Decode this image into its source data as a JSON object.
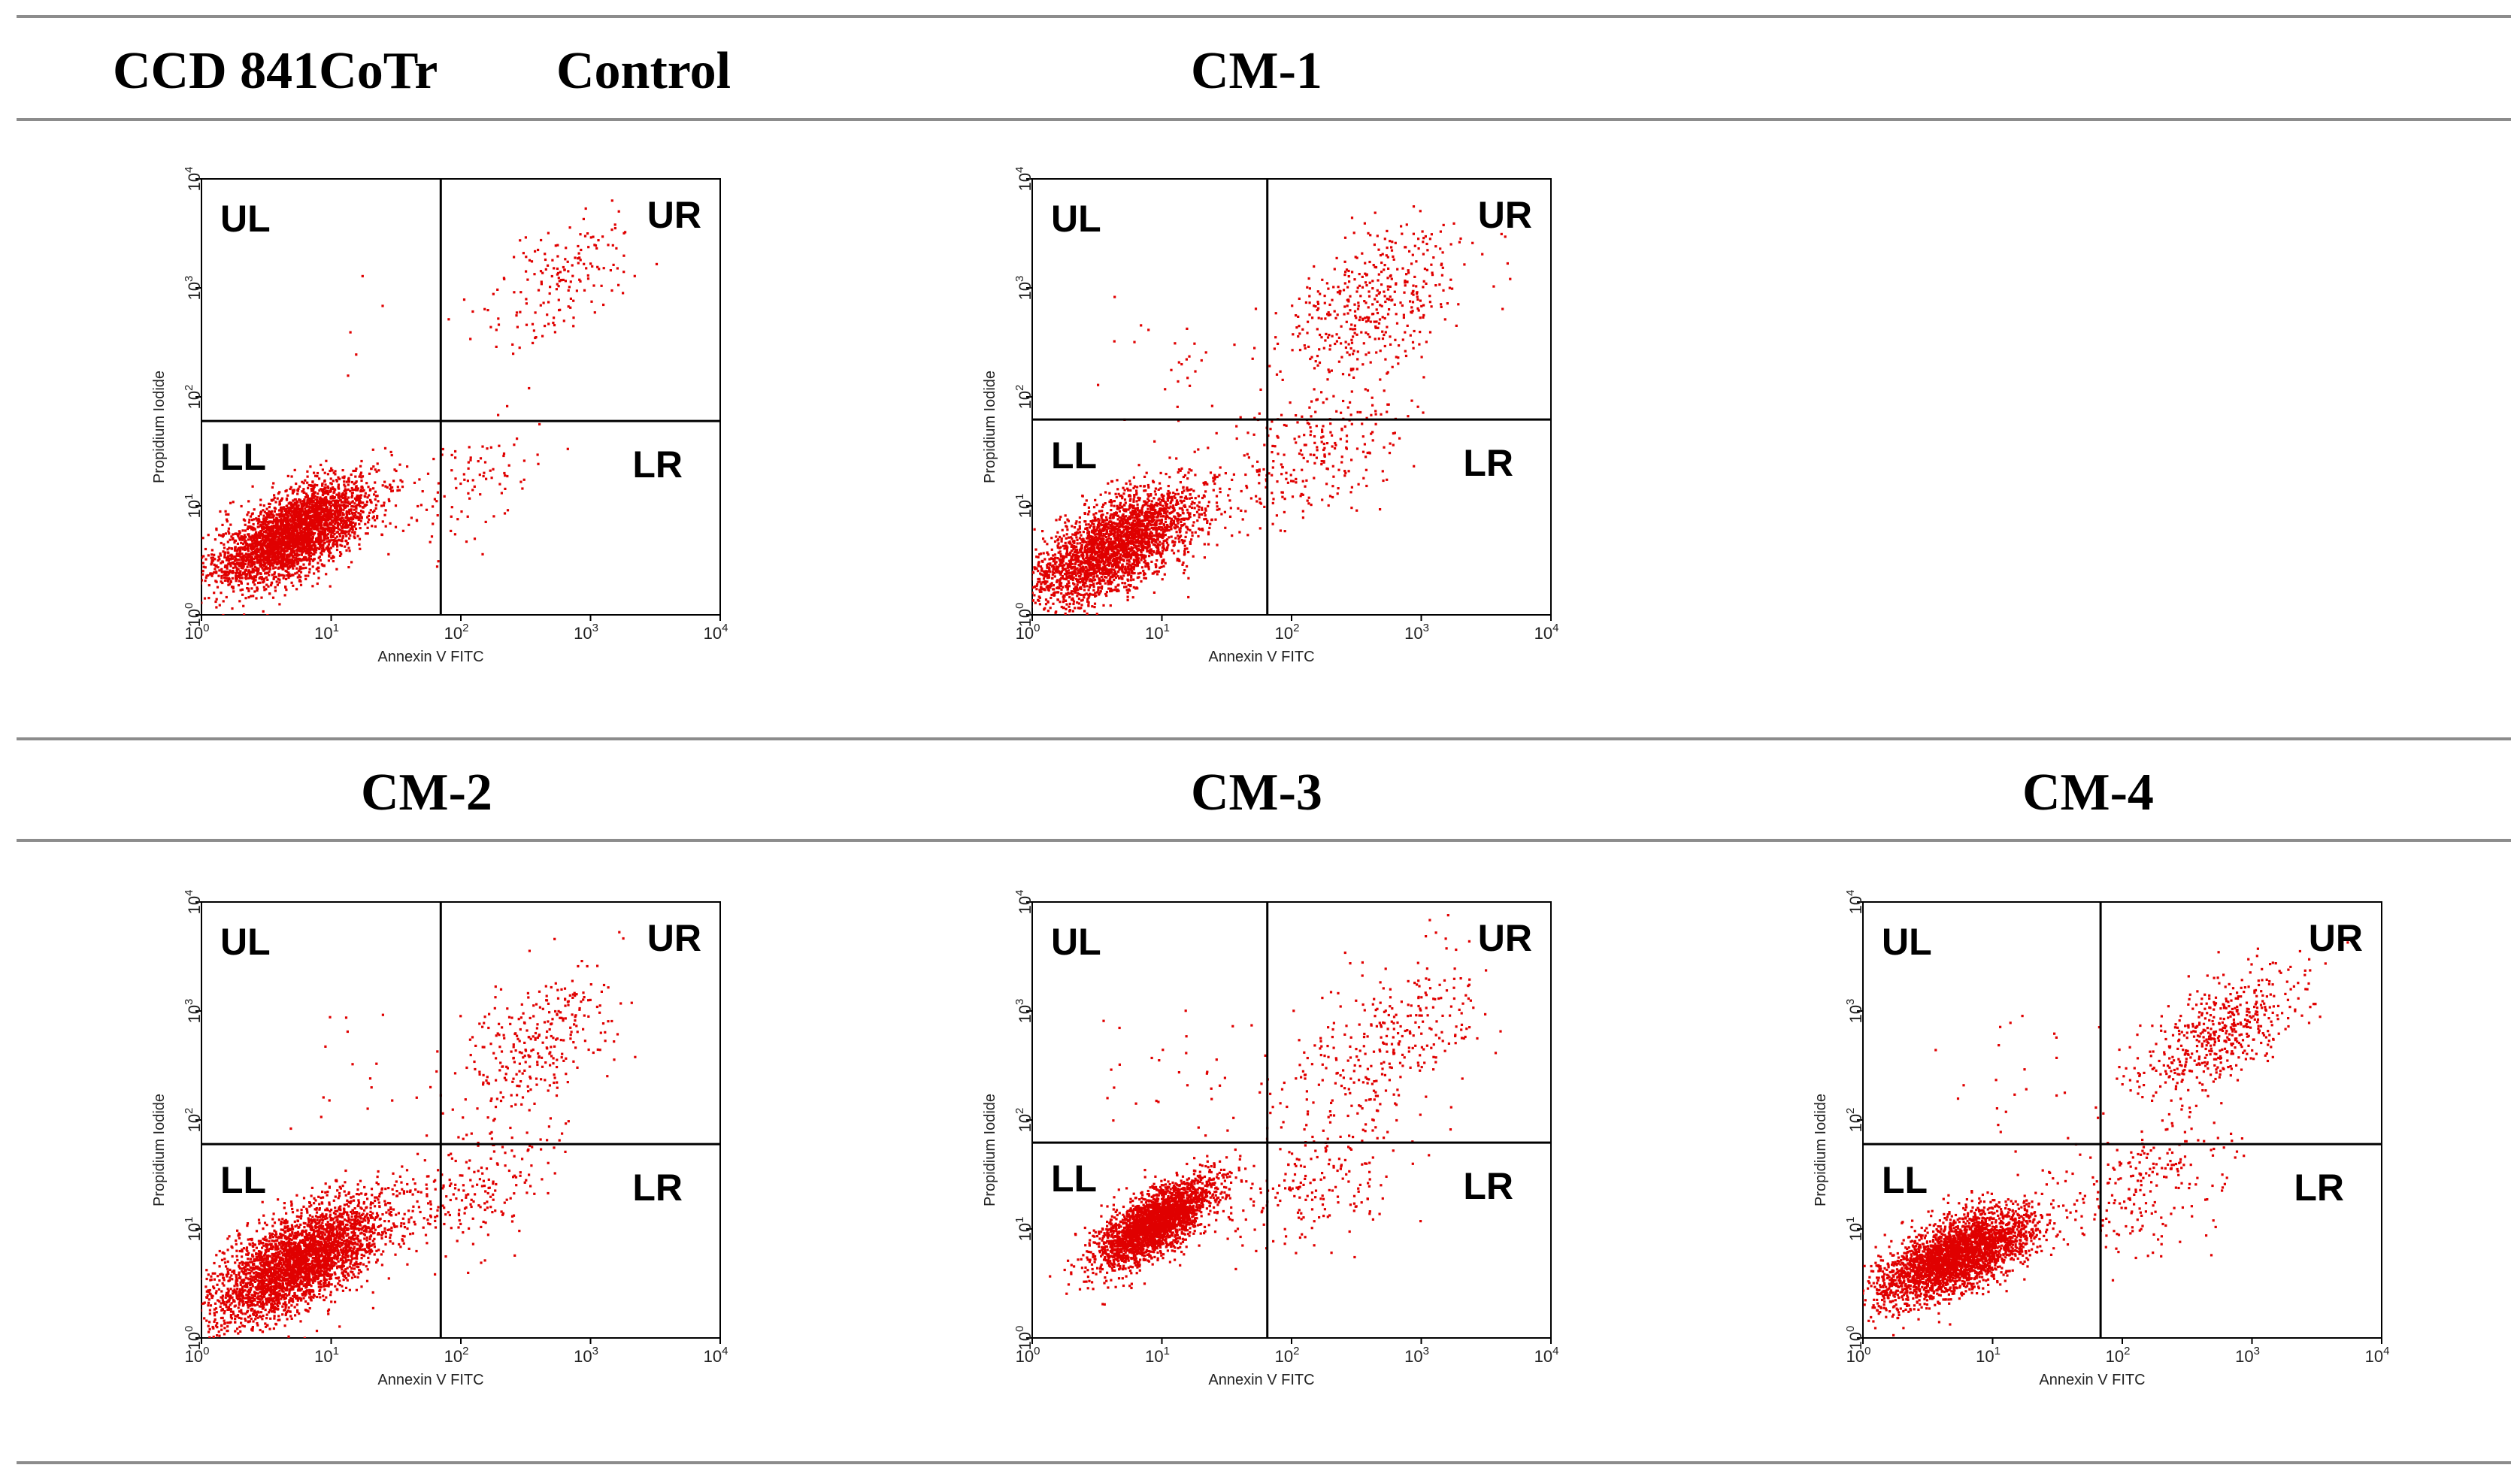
{
  "figure": {
    "cell_line": "CCD 841CoTr",
    "background": "#ffffff",
    "dot_color": "#e00000",
    "quadrant_line_color": "#000000"
  },
  "chart_data": [
    {
      "id": "control",
      "type": "scatter",
      "title": "Control",
      "xlabel": "Annexin V FITC",
      "ylabel": "Propidium Iodide",
      "x_scale": "log10",
      "y_scale": "log10",
      "xlim": [
        1,
        10000
      ],
      "ylim": [
        1,
        10000
      ],
      "xticks": [
        "10",
        "10",
        "10",
        "10",
        "10"
      ],
      "xtick_exps": [
        "0",
        "1",
        "2",
        "3",
        "4"
      ],
      "yticks": [
        "10",
        "10",
        "10",
        "10",
        "10"
      ],
      "ytick_exps": [
        "0",
        "1",
        "2",
        "3",
        "4"
      ],
      "quadrant_gate": {
        "x": 70,
        "y": 60
      },
      "quadrants": [
        "UL",
        "UR",
        "LL",
        "LR"
      ],
      "populations": [
        {
          "name": "viable",
          "n": 3400,
          "center": [
            0.72,
            0.75
          ],
          "spread": [
            0.3,
            0.24
          ],
          "corr": 0.65
        },
        {
          "name": "early_apoptotic",
          "n": 90,
          "center": [
            2.1,
            1.2
          ],
          "spread": [
            0.22,
            0.28
          ],
          "corr": 0.4
        },
        {
          "name": "late_apoptotic",
          "n": 170,
          "center": [
            2.75,
            3.05
          ],
          "spread": [
            0.28,
            0.3
          ],
          "corr": 0.5
        },
        {
          "name": "necrotic",
          "n": 5,
          "center": [
            1.3,
            2.5
          ],
          "spread": [
            0.25,
            0.25
          ],
          "corr": 0.0
        }
      ]
    },
    {
      "id": "cm1",
      "type": "scatter",
      "title": "CM-1",
      "xlabel": "Annexin V FITC",
      "ylabel": "Propidium Iodide",
      "x_scale": "log10",
      "y_scale": "log10",
      "xlim": [
        1,
        10000
      ],
      "ylim": [
        1,
        10000
      ],
      "xticks": [
        "10",
        "10",
        "10",
        "10",
        "10"
      ],
      "xtick_exps": [
        "0",
        "1",
        "2",
        "3",
        "4"
      ],
      "yticks": [
        "10",
        "10",
        "10",
        "10",
        "10"
      ],
      "ytick_exps": [
        "0",
        "1",
        "2",
        "3",
        "4"
      ],
      "quadrant_gate": {
        "x": 65,
        "y": 62
      },
      "quadrants": [
        "UL",
        "UR",
        "LL",
        "LR"
      ],
      "populations": [
        {
          "name": "viable",
          "n": 2800,
          "center": [
            0.62,
            0.62
          ],
          "spread": [
            0.33,
            0.27
          ],
          "corr": 0.65
        },
        {
          "name": "early_apoptotic",
          "n": 280,
          "center": [
            2.2,
            1.5
          ],
          "spread": [
            0.35,
            0.38
          ],
          "corr": 0.5
        },
        {
          "name": "late_apoptotic",
          "n": 420,
          "center": [
            2.6,
            2.85
          ],
          "spread": [
            0.35,
            0.35
          ],
          "corr": 0.5
        },
        {
          "name": "necrotic",
          "n": 30,
          "center": [
            1.2,
            2.2
          ],
          "spread": [
            0.35,
            0.35
          ],
          "corr": 0.0
        }
      ]
    },
    {
      "id": "cm2",
      "type": "scatter",
      "title": "CM-2",
      "xlabel": "Annexin V FITC",
      "ylabel": "Propidium Iodide",
      "x_scale": "log10",
      "y_scale": "log10",
      "xlim": [
        1,
        10000
      ],
      "ylim": [
        1,
        10000
      ],
      "xticks": [
        "10",
        "10",
        "10",
        "10",
        "10"
      ],
      "xtick_exps": [
        "0",
        "1",
        "2",
        "3",
        "4"
      ],
      "yticks": [
        "10",
        "10",
        "10",
        "10",
        "10"
      ],
      "ytick_exps": [
        "0",
        "1",
        "2",
        "3",
        "4"
      ],
      "quadrant_gate": {
        "x": 70,
        "y": 60
      },
      "quadrants": [
        "UL",
        "UR",
        "LL",
        "LR"
      ],
      "populations": [
        {
          "name": "viable",
          "n": 3400,
          "center": [
            0.75,
            0.7
          ],
          "spread": [
            0.33,
            0.28
          ],
          "corr": 0.65
        },
        {
          "name": "early_apoptotic",
          "n": 200,
          "center": [
            2.1,
            1.35
          ],
          "spread": [
            0.3,
            0.32
          ],
          "corr": 0.45
        },
        {
          "name": "late_apoptotic",
          "n": 300,
          "center": [
            2.6,
            2.75
          ],
          "spread": [
            0.33,
            0.35
          ],
          "corr": 0.55
        },
        {
          "name": "necrotic",
          "n": 15,
          "center": [
            1.2,
            2.4
          ],
          "spread": [
            0.3,
            0.3
          ],
          "corr": 0.0
        }
      ]
    },
    {
      "id": "cm3",
      "type": "scatter",
      "title": "CM-3",
      "xlabel": "Annexin V FITC",
      "ylabel": "Propidium Iodide",
      "x_scale": "log10",
      "y_scale": "log10",
      "xlim": [
        1,
        10000
      ],
      "ylim": [
        1,
        10000
      ],
      "xticks": [
        "10",
        "10",
        "10",
        "10",
        "10"
      ],
      "xtick_exps": [
        "0",
        "1",
        "2",
        "3",
        "4"
      ],
      "yticks": [
        "10",
        "10",
        "10",
        "10",
        "10"
      ],
      "ytick_exps": [
        "0",
        "1",
        "2",
        "3",
        "4"
      ],
      "quadrant_gate": {
        "x": 65,
        "y": 62
      },
      "quadrants": [
        "UL",
        "UR",
        "LL",
        "LR"
      ],
      "populations": [
        {
          "name": "viable",
          "n": 2800,
          "center": [
            0.95,
            1.05
          ],
          "spread": [
            0.22,
            0.2
          ],
          "corr": 0.7
        },
        {
          "name": "early_apoptotic",
          "n": 200,
          "center": [
            2.2,
            1.45
          ],
          "spread": [
            0.35,
            0.35
          ],
          "corr": 0.45
        },
        {
          "name": "late_apoptotic",
          "n": 320,
          "center": [
            2.75,
            2.75
          ],
          "spread": [
            0.35,
            0.38
          ],
          "corr": 0.5
        },
        {
          "name": "necrotic",
          "n": 35,
          "center": [
            1.25,
            2.3
          ],
          "spread": [
            0.4,
            0.4
          ],
          "corr": 0.0
        }
      ]
    },
    {
      "id": "cm4",
      "type": "scatter",
      "title": "CM-4",
      "xlabel": "Annexin V FITC",
      "ylabel": "Propidium Iodide",
      "x_scale": "log10",
      "y_scale": "log10",
      "xlim": [
        1,
        10000
      ],
      "ylim": [
        1,
        10000
      ],
      "xticks": [
        "10",
        "10",
        "10",
        "10",
        "10"
      ],
      "xtick_exps": [
        "0",
        "1",
        "2",
        "3",
        "4"
      ],
      "yticks": [
        "10",
        "10",
        "10",
        "10",
        "10"
      ],
      "ytick_exps": [
        "0",
        "1",
        "2",
        "3",
        "4"
      ],
      "quadrant_gate": {
        "x": 68,
        "y": 60
      },
      "quadrants": [
        "UL",
        "UR",
        "LL",
        "LR"
      ],
      "populations": [
        {
          "name": "viable",
          "n": 3100,
          "center": [
            0.72,
            0.75
          ],
          "spread": [
            0.3,
            0.22
          ],
          "corr": 0.65
        },
        {
          "name": "early_apoptotic",
          "n": 220,
          "center": [
            2.2,
            1.4
          ],
          "spread": [
            0.33,
            0.35
          ],
          "corr": 0.45
        },
        {
          "name": "late_apoptotic",
          "n": 520,
          "center": [
            2.75,
            2.8
          ],
          "spread": [
            0.3,
            0.3
          ],
          "corr": 0.6
        },
        {
          "name": "necrotic",
          "n": 25,
          "center": [
            1.25,
            2.4
          ],
          "spread": [
            0.35,
            0.35
          ],
          "corr": 0.0
        }
      ]
    }
  ]
}
